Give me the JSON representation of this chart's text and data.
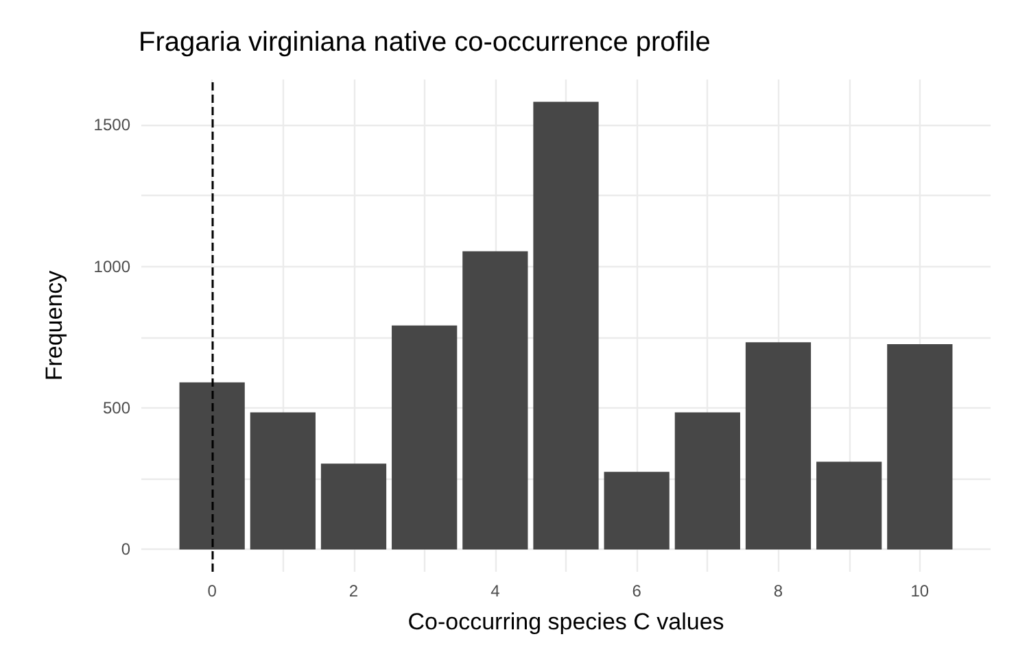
{
  "chart_data": {
    "type": "bar",
    "title": "Fragaria virginiana native co-occurrence profile",
    "xlabel": "Co-occurring species C values",
    "ylabel": "Frequency",
    "x": [
      0,
      1,
      2,
      3,
      4,
      5,
      6,
      7,
      8,
      9,
      10
    ],
    "values": [
      590,
      484,
      303,
      791,
      1053,
      1581,
      274,
      484,
      732,
      310,
      725
    ],
    "color": "#474747",
    "xlim": [
      -1,
      11
    ],
    "xticks": [
      0,
      {
        "value": 1,
        "label": null
      },
      2,
      {
        "value": 3,
        "label": null
      },
      4,
      {
        "value": 5,
        "label": null
      },
      6,
      {
        "value": 7,
        "label": null
      },
      8,
      {
        "value": 9,
        "label": null
      },
      10
    ],
    "ylim": [
      -79,
      1660
    ],
    "yticks": [
      0,
      {
        "value": 250,
        "label": null
      },
      500,
      {
        "value": 750,
        "label": null
      },
      1000,
      {
        "value": 1250,
        "label": null
      },
      1500
    ],
    "grid": true,
    "ref_lines": [
      {
        "axis": "x",
        "value": 0,
        "color": "#000000",
        "line_style": "dashed"
      }
    ]
  }
}
